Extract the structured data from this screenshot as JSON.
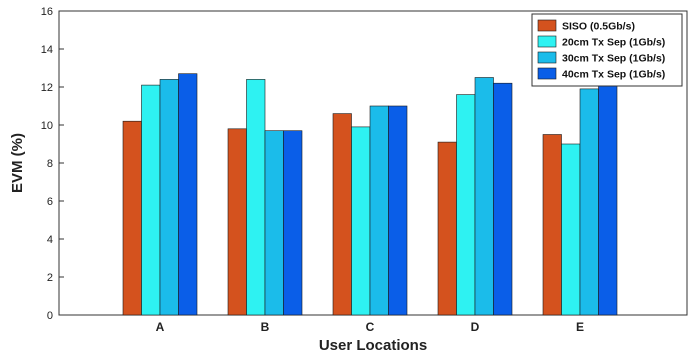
{
  "chart_data": {
    "type": "bar",
    "xlabel": "User Locations",
    "ylabel": "EVM (%)",
    "ylim": [
      0,
      16
    ],
    "yticks": [
      0,
      2,
      4,
      6,
      8,
      10,
      12,
      14,
      16
    ],
    "categories": [
      "A",
      "B",
      "C",
      "D",
      "E"
    ],
    "grid": false,
    "legend_position": "top-right",
    "series": [
      {
        "name": "SISO (0.5Gb/s)",
        "color": "#d4521e",
        "values": [
          10.2,
          9.8,
          10.6,
          9.1,
          9.5
        ]
      },
      {
        "name": "20cm Tx Sep (1Gb/s)",
        "color": "#2ef2f2",
        "values": [
          12.1,
          12.4,
          9.9,
          11.6,
          9.0
        ]
      },
      {
        "name": "30cm Tx Sep (1Gb/s)",
        "color": "#1bbcea",
        "values": [
          12.4,
          9.7,
          11.0,
          12.5,
          11.9
        ]
      },
      {
        "name": "40cm Tx Sep (1Gb/s)",
        "color": "#0a5ee8",
        "values": [
          12.7,
          9.7,
          11.0,
          12.2,
          12.1
        ]
      }
    ]
  }
}
